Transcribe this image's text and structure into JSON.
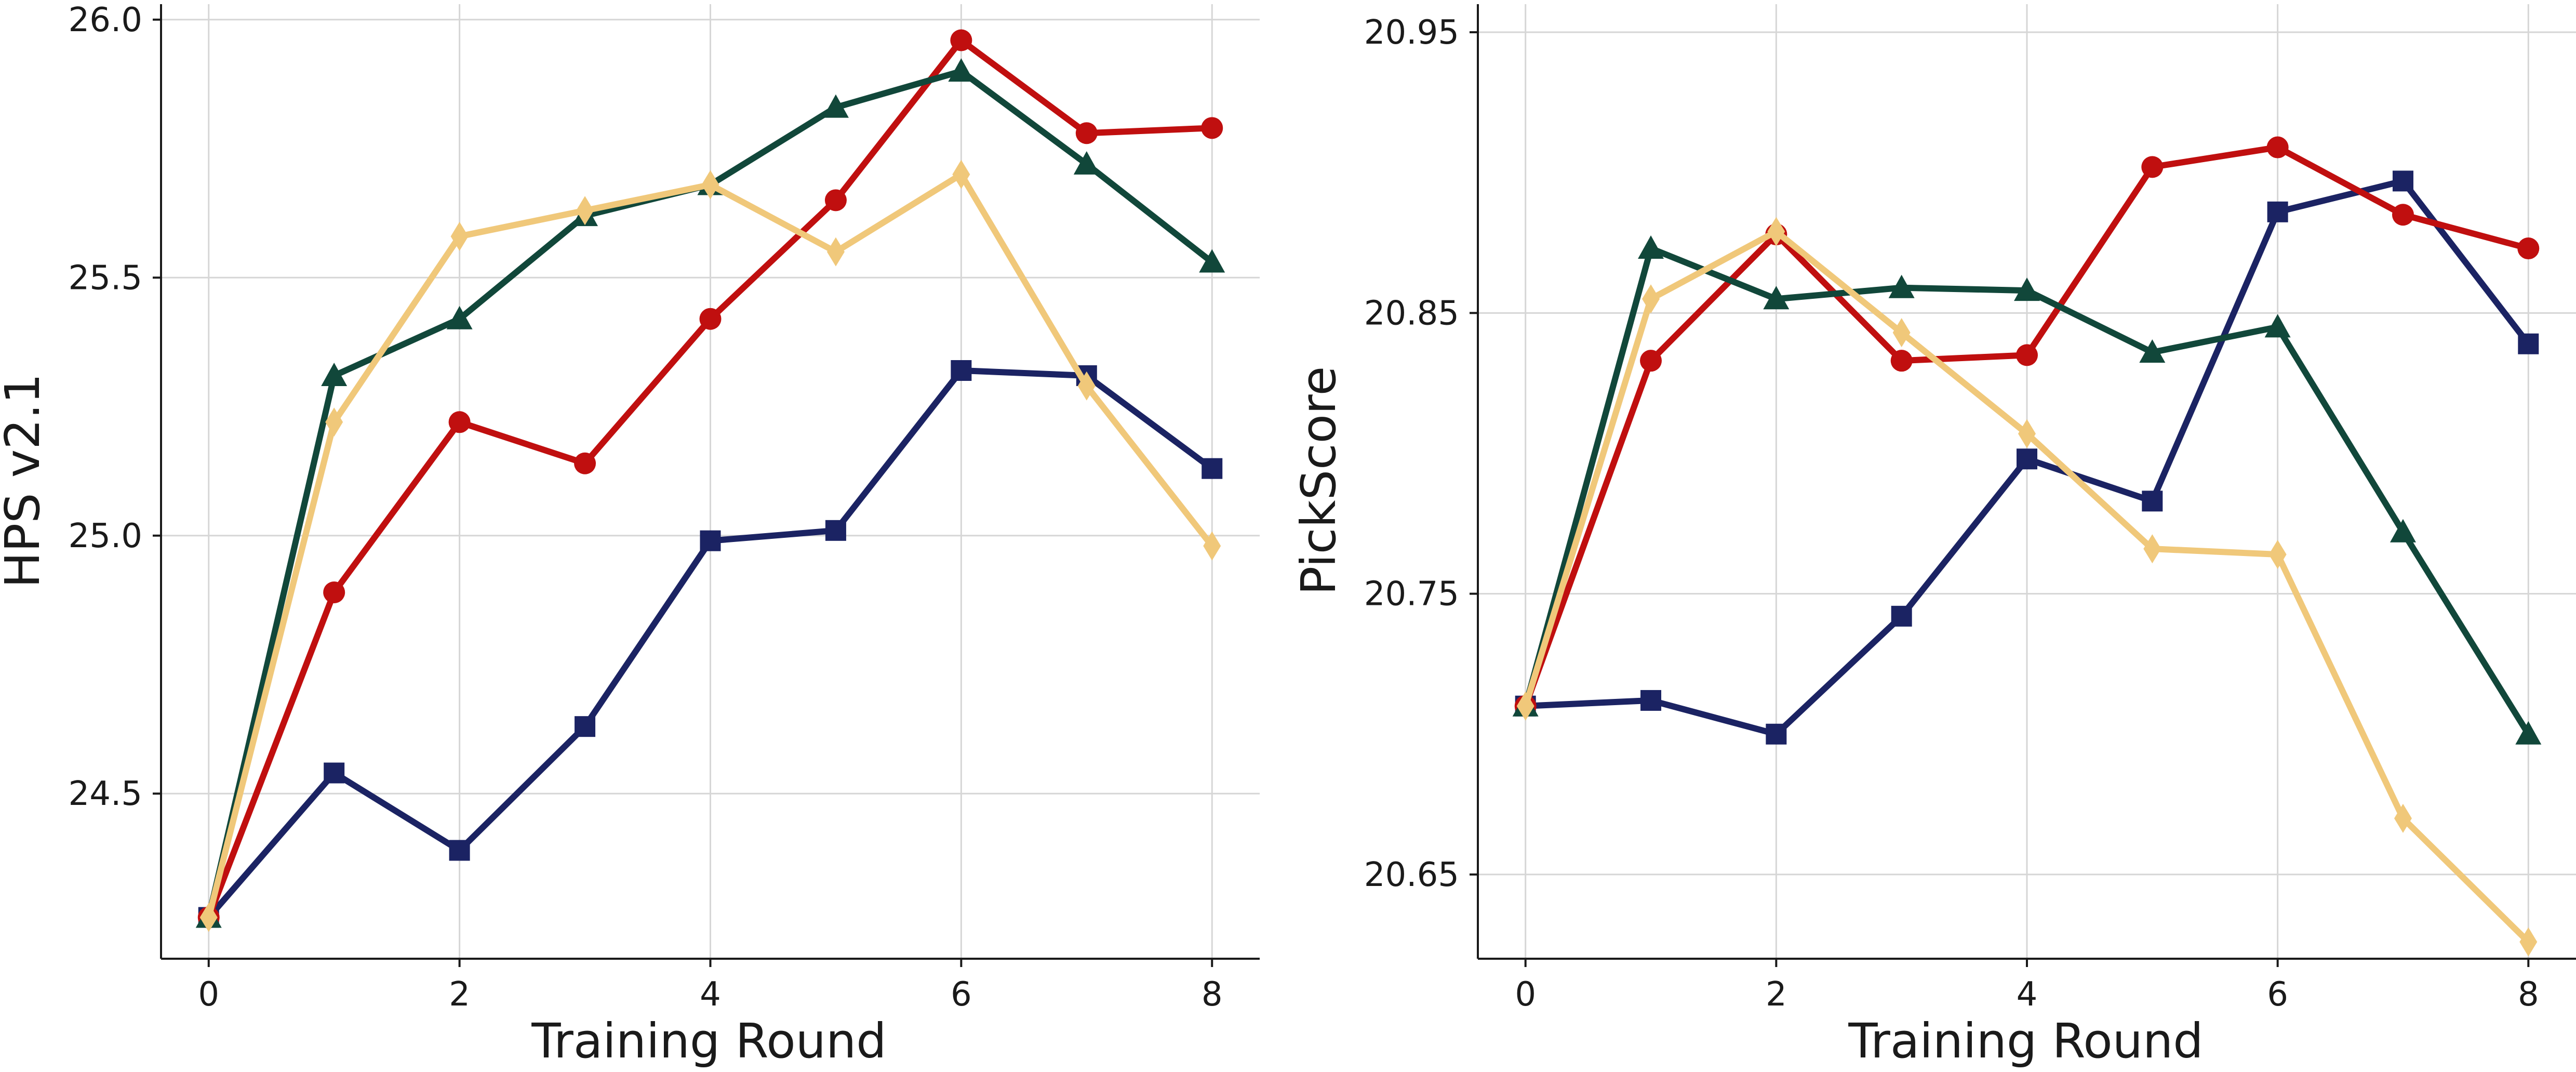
{
  "chart_data": [
    {
      "type": "line",
      "title": "",
      "xlabel": "Training Round",
      "ylabel": "HPS v2.1",
      "xlim": [
        -0.38,
        8.38
      ],
      "ylim": [
        24.18,
        26.03
      ],
      "xticks": [
        0,
        2,
        4,
        6,
        8
      ],
      "xtick_labels": [
        "0",
        "2",
        "4",
        "6",
        "8"
      ],
      "yticks": [
        24.5,
        25.0,
        25.5,
        26.0
      ],
      "ytick_labels": [
        "24.5",
        "25.0",
        "25.5",
        "26.0"
      ],
      "grid": true,
      "x": [
        0,
        1,
        2,
        3,
        4,
        5,
        6,
        7,
        8
      ],
      "series": [
        {
          "name": "navy-square",
          "color": "#1b2363",
          "marker": "square",
          "values": [
            24.26,
            24.54,
            24.39,
            24.63,
            24.99,
            25.01,
            25.32,
            25.31,
            25.13
          ]
        },
        {
          "name": "red-circle",
          "color": "#c00f0f",
          "marker": "circle",
          "values": [
            24.26,
            24.89,
            25.22,
            25.14,
            25.42,
            25.65,
            25.96,
            25.78,
            25.79
          ]
        },
        {
          "name": "green-triangle",
          "color": "#11473a",
          "marker": "triangle",
          "values": [
            24.26,
            25.31,
            25.42,
            25.62,
            25.68,
            25.83,
            25.9,
            25.72,
            25.53
          ]
        },
        {
          "name": "gold-diamond",
          "color": "#f0c87a",
          "marker": "diamond",
          "values": [
            24.26,
            25.22,
            25.58,
            25.63,
            25.68,
            25.55,
            25.7,
            25.29,
            24.98
          ]
        }
      ]
    },
    {
      "type": "line",
      "title": "",
      "xlabel": "Training Round",
      "ylabel": "PickScore",
      "xlim": [
        -0.38,
        8.38
      ],
      "ylim": [
        20.62,
        20.96
      ],
      "xticks": [
        0,
        2,
        4,
        6,
        8
      ],
      "xtick_labels": [
        "0",
        "2",
        "4",
        "6",
        "8"
      ],
      "yticks": [
        20.65,
        20.75,
        20.85,
        20.95
      ],
      "ytick_labels": [
        "20.65",
        "20.75",
        "20.85",
        "20.95"
      ],
      "grid": true,
      "x": [
        0,
        1,
        2,
        3,
        4,
        5,
        6,
        7,
        8
      ],
      "series": [
        {
          "name": "navy-square",
          "color": "#1b2363",
          "marker": "square",
          "values": [
            20.71,
            20.712,
            20.7,
            20.742,
            20.798,
            20.783,
            20.886,
            20.897,
            20.839
          ]
        },
        {
          "name": "red-circle",
          "color": "#c00f0f",
          "marker": "circle",
          "values": [
            20.71,
            20.833,
            20.878,
            20.833,
            20.835,
            20.902,
            20.909,
            20.885,
            20.873
          ]
        },
        {
          "name": "green-triangle",
          "color": "#11473a",
          "marker": "triangle",
          "values": [
            20.71,
            20.873,
            20.855,
            20.859,
            20.858,
            20.836,
            20.845,
            20.772,
            20.7
          ]
        },
        {
          "name": "gold-diamond",
          "color": "#f0c87a",
          "marker": "diamond",
          "values": [
            20.71,
            20.855,
            20.879,
            20.843,
            20.807,
            20.766,
            20.764,
            20.67,
            20.626
          ]
        }
      ]
    }
  ]
}
